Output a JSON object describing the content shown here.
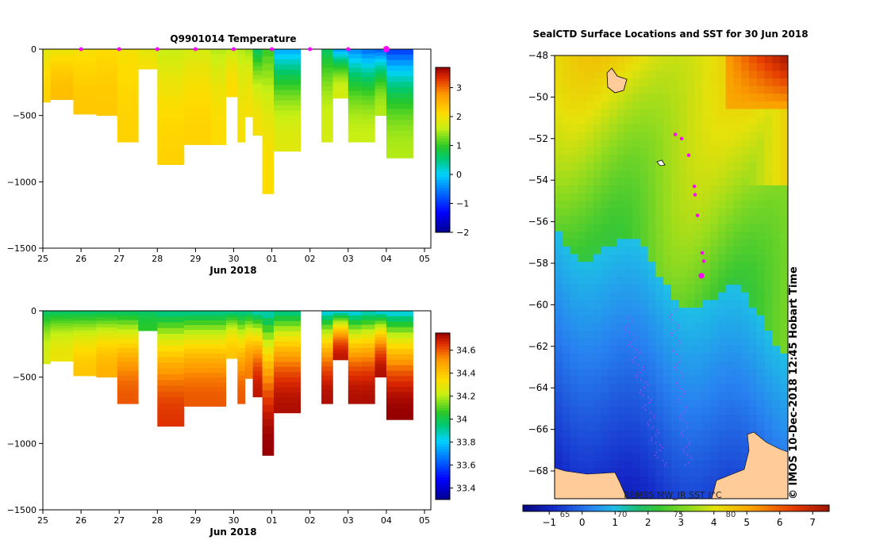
{
  "chart_data": [
    {
      "type": "heatmap",
      "title": "Q9901014  Temperature",
      "xlabel": "Jun 2018",
      "ylabel": "",
      "x_ticks": [
        "25",
        "26",
        "27",
        "28",
        "29",
        "30",
        "01",
        "02",
        "03",
        "04",
        "05"
      ],
      "y_ticks": [
        0,
        -500,
        -1000,
        -1500
      ],
      "ylim": [
        -1500,
        0
      ],
      "colorbar_ticks": [
        3,
        2,
        1,
        0,
        -1,
        -2
      ],
      "colorbar_range": [
        -2,
        3.7
      ],
      "profile_markers": [
        "26",
        "27",
        "28",
        "29",
        "30",
        "01",
        "02",
        "03",
        "04"
      ],
      "profiles": [
        {
          "x0": 0.0,
          "x1": 0.2,
          "depth": 400,
          "top": 1.8,
          "bottom": 2.2
        },
        {
          "x0": 0.2,
          "x1": 0.8,
          "depth": 380,
          "top": 1.9,
          "bottom": 2.4
        },
        {
          "x0": 0.8,
          "x1": 1.4,
          "depth": 490,
          "top": 2.0,
          "bottom": 2.3
        },
        {
          "x0": 1.4,
          "x1": 1.95,
          "depth": 500,
          "top": 2.1,
          "bottom": 2.3
        },
        {
          "x0": 1.95,
          "x1": 2.5,
          "depth": 700,
          "top": 2.0,
          "bottom": 2.2
        },
        {
          "x0": 2.5,
          "x1": 3.0,
          "depth": 150,
          "top": 1.8,
          "bottom": 2.0
        },
        {
          "x0": 3.0,
          "x1": 3.7,
          "depth": 870,
          "top": 1.6,
          "bottom": 2.2
        },
        {
          "x0": 3.7,
          "x1": 4.4,
          "depth": 720,
          "top": 1.7,
          "bottom": 2.2
        },
        {
          "x0": 4.4,
          "x1": 4.8,
          "depth": 720,
          "top": 1.5,
          "bottom": 2.1
        },
        {
          "x0": 4.8,
          "x1": 5.1,
          "depth": 360,
          "top": 1.6,
          "bottom": 2.1
        },
        {
          "x0": 5.1,
          "x1": 5.3,
          "depth": 700,
          "top": 1.5,
          "bottom": 2.0
        },
        {
          "x0": 5.3,
          "x1": 5.5,
          "depth": 510,
          "top": 1.4,
          "bottom": 2.0
        },
        {
          "x0": 5.5,
          "x1": 5.75,
          "depth": 650,
          "top": 0.6,
          "bottom": 2.0
        },
        {
          "x0": 5.75,
          "x1": 6.05,
          "depth": 1090,
          "top": 1.0,
          "bottom": 2.1
        },
        {
          "x0": 6.05,
          "x1": 6.75,
          "depth": 770,
          "top": -0.3,
          "bottom": 1.8
        },
        {
          "x0": 7.3,
          "x1": 7.6,
          "depth": 700,
          "top": 0.6,
          "bottom": 1.7
        },
        {
          "x0": 7.6,
          "x1": 8.0,
          "depth": 370,
          "top": -0.4,
          "bottom": 1.7
        },
        {
          "x0": 8.0,
          "x1": 8.35,
          "depth": 700,
          "top": -0.5,
          "bottom": 1.6
        },
        {
          "x0": 8.35,
          "x1": 8.7,
          "depth": 700,
          "top": -0.7,
          "bottom": 1.6
        },
        {
          "x0": 8.7,
          "x1": 9.0,
          "depth": 500,
          "top": -0.8,
          "bottom": 1.5
        },
        {
          "x0": 9.0,
          "x1": 9.7,
          "depth": 820,
          "top": -1.0,
          "bottom": 1.5
        }
      ]
    },
    {
      "type": "heatmap",
      "title": "",
      "xlabel": "Jun 2018",
      "ylabel": "",
      "x_ticks": [
        "25",
        "26",
        "27",
        "28",
        "29",
        "30",
        "01",
        "02",
        "03",
        "04",
        "05"
      ],
      "y_ticks": [
        0,
        -500,
        -1000,
        -1500
      ],
      "ylim": [
        -1500,
        0
      ],
      "colorbar_ticks": [
        34.6,
        34.4,
        34.2,
        34,
        33.8,
        33.6,
        33.4
      ],
      "colorbar_range": [
        33.3,
        34.75
      ],
      "profiles": [
        {
          "x0": 0.0,
          "x1": 0.2,
          "depth": 400,
          "top": 33.95,
          "bottom": 34.25
        },
        {
          "x0": 0.2,
          "x1": 0.8,
          "depth": 380,
          "top": 33.95,
          "bottom": 34.3
        },
        {
          "x0": 0.8,
          "x1": 1.4,
          "depth": 490,
          "top": 33.95,
          "bottom": 34.4
        },
        {
          "x0": 1.4,
          "x1": 1.95,
          "depth": 500,
          "top": 33.95,
          "bottom": 34.45
        },
        {
          "x0": 1.95,
          "x1": 2.5,
          "depth": 700,
          "top": 33.95,
          "bottom": 34.6
        },
        {
          "x0": 2.5,
          "x1": 3.0,
          "depth": 150,
          "top": 33.95,
          "bottom": 34.05
        },
        {
          "x0": 3.0,
          "x1": 3.7,
          "depth": 870,
          "top": 33.9,
          "bottom": 34.65
        },
        {
          "x0": 3.7,
          "x1": 4.4,
          "depth": 720,
          "top": 33.9,
          "bottom": 34.6
        },
        {
          "x0": 4.4,
          "x1": 4.8,
          "depth": 720,
          "top": 33.9,
          "bottom": 34.6
        },
        {
          "x0": 4.8,
          "x1": 5.1,
          "depth": 360,
          "top": 33.9,
          "bottom": 34.4
        },
        {
          "x0": 5.1,
          "x1": 5.3,
          "depth": 700,
          "top": 33.9,
          "bottom": 34.6
        },
        {
          "x0": 5.3,
          "x1": 5.5,
          "depth": 510,
          "top": 33.9,
          "bottom": 34.55
        },
        {
          "x0": 5.5,
          "x1": 5.75,
          "depth": 650,
          "top": 33.85,
          "bottom": 34.7
        },
        {
          "x0": 5.75,
          "x1": 6.05,
          "depth": 1090,
          "top": 33.85,
          "bottom": 34.75
        },
        {
          "x0": 6.05,
          "x1": 6.75,
          "depth": 770,
          "top": 33.9,
          "bottom": 34.72
        },
        {
          "x0": 7.3,
          "x1": 7.6,
          "depth": 700,
          "top": 33.8,
          "bottom": 34.72
        },
        {
          "x0": 7.6,
          "x1": 8.0,
          "depth": 370,
          "top": 33.8,
          "bottom": 34.7
        },
        {
          "x0": 8.0,
          "x1": 8.35,
          "depth": 700,
          "top": 33.8,
          "bottom": 34.72
        },
        {
          "x0": 8.35,
          "x1": 8.7,
          "depth": 700,
          "top": 33.85,
          "bottom": 34.72
        },
        {
          "x0": 8.7,
          "x1": 9.0,
          "depth": 500,
          "top": 33.8,
          "bottom": 34.72
        },
        {
          "x0": 9.0,
          "x1": 9.7,
          "depth": 820,
          "top": 33.8,
          "bottom": 34.75
        }
      ]
    },
    {
      "type": "heatmap",
      "title": "SealCTD Surface Locations and SST for 30 Jun 2018",
      "xlabel": "",
      "ylabel": "",
      "y_ticks": [
        -48,
        -50,
        -52,
        -54,
        -56,
        -58,
        -60,
        -62,
        -64,
        -66,
        -68
      ],
      "ylim": [
        -69,
        -48
      ],
      "colorbar_ticks": [
        -1,
        0,
        1,
        2,
        3,
        4,
        5,
        6,
        7
      ],
      "colorbar_range": [
        -1.8,
        7.5
      ],
      "colorbar_sub_ticks": [
        "65",
        "70",
        "75",
        "80"
      ],
      "credit": "REMSS MW_IR SST (°C",
      "sidebar_text": "©  IMOS 10-Dec-2018 12:45 Hobart Time",
      "seal_locations_lat": [
        -51.8,
        -52.0,
        -52.8,
        -54.3,
        -54.7,
        -55.7,
        -57.5,
        -57.9,
        -58.6
      ]
    }
  ]
}
